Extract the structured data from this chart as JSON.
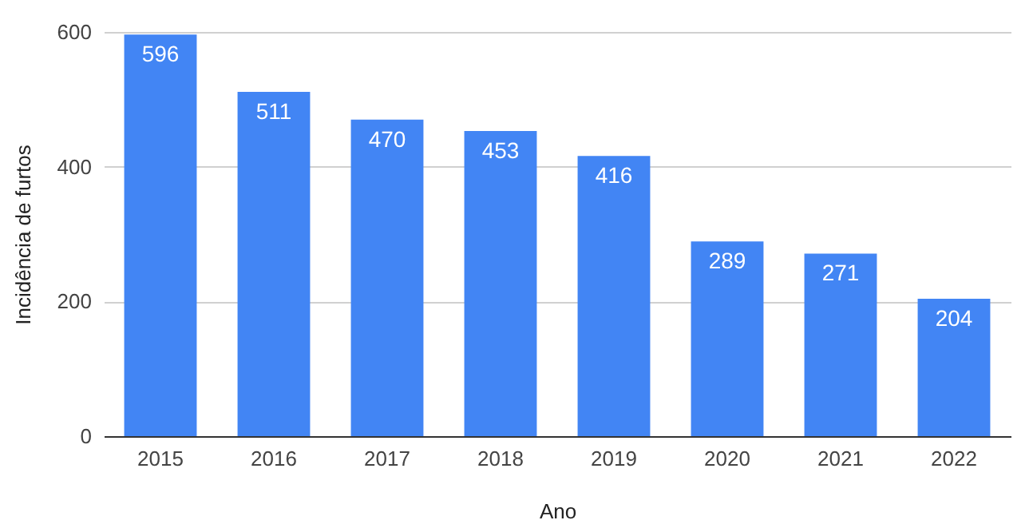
{
  "chart_data": {
    "type": "bar",
    "xlabel": "Ano",
    "ylabel": "Incidência de furtos",
    "categories": [
      "2015",
      "2016",
      "2017",
      "2018",
      "2019",
      "2020",
      "2021",
      "2022"
    ],
    "values": [
      596,
      511,
      470,
      453,
      416,
      289,
      271,
      204
    ],
    "color": "#4285f4",
    "ylim": [
      0,
      600
    ],
    "yticks": [
      0,
      200,
      400,
      600
    ],
    "grid": "y",
    "data_labels": true
  }
}
